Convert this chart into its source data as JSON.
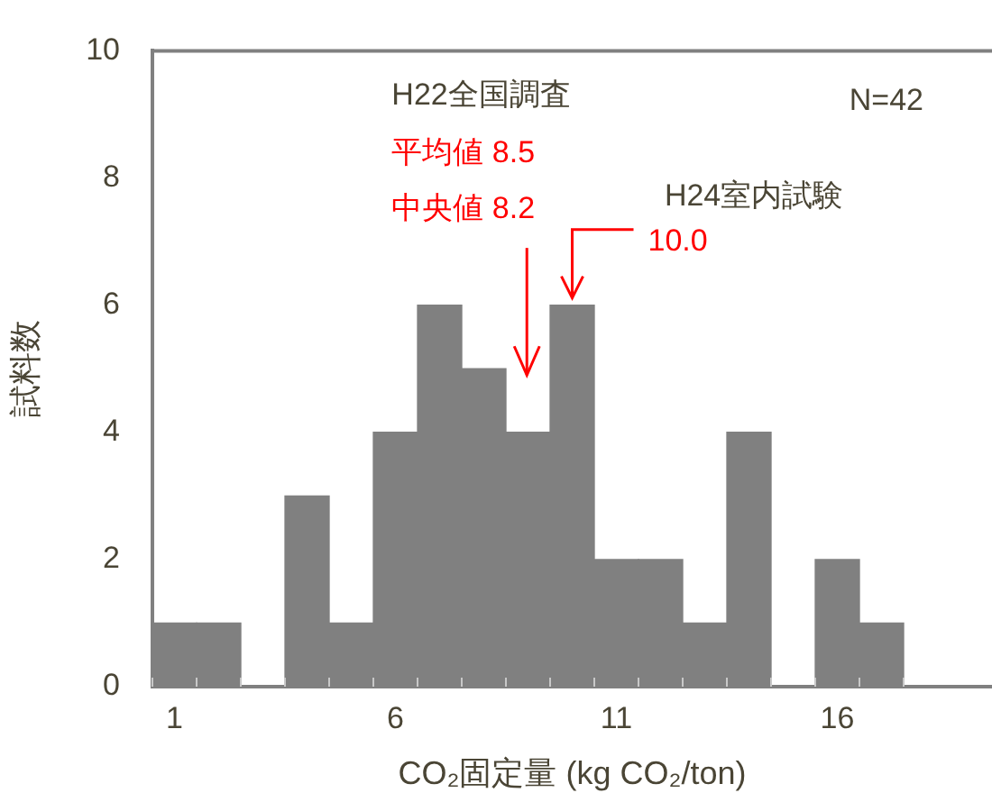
{
  "chart_data": {
    "type": "histogram",
    "xlabel": "CO₂固定量 (kg CO₂/ton)",
    "ylabel": "試料数",
    "bins": [
      0.5,
      1.5,
      2.5,
      3.5,
      4.5,
      5.5,
      6.5,
      7.5,
      8.5,
      9.5,
      10.5,
      11.5,
      12.5,
      13.5,
      14.5,
      15.5,
      16.5,
      17.5
    ],
    "values": [
      1,
      1,
      0,
      3,
      1,
      4,
      6,
      5,
      4,
      6,
      2,
      2,
      1,
      4,
      0,
      2,
      1
    ],
    "color": "#808080",
    "xlim": [
      0.5,
      19.5
    ],
    "xticks": [
      1,
      6,
      11,
      16
    ],
    "ylim": [
      0,
      10
    ],
    "yticks": [
      0,
      2,
      4,
      6,
      8,
      10
    ],
    "grid": false,
    "legend": false,
    "annotations": [
      "H22全国調査",
      "N=42",
      "平均値  8.5",
      "中央値  8.2",
      "H24室内試験",
      {
        "text": "10.0",
        "x": 10,
        "y": 6
      }
    ]
  }
}
